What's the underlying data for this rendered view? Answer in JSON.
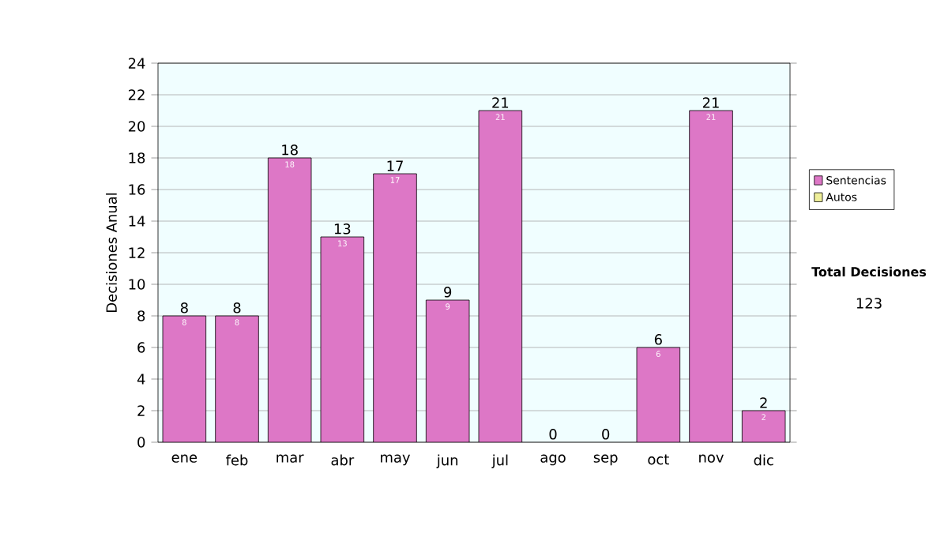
{
  "chart_data": {
    "type": "bar",
    "ylabel": "Decisiones Anual",
    "categories": [
      "ene",
      "feb",
      "mar",
      "abr",
      "may",
      "jun",
      "jul",
      "ago",
      "sep",
      "oct",
      "nov",
      "dic"
    ],
    "series": [
      {
        "name": "Sentencias",
        "color": "#dd77c6",
        "values": [
          8,
          8,
          18,
          13,
          17,
          9,
          21,
          0,
          0,
          6,
          21,
          2
        ],
        "value_labels": [
          "8",
          "8",
          "18",
          "13",
          "17",
          "9",
          "21",
          null,
          null,
          "6",
          "21",
          "2"
        ]
      },
      {
        "name": "Autos",
        "color": "#eeee99",
        "values": [
          0,
          0,
          0,
          0,
          0,
          0,
          0,
          0,
          0,
          0,
          0,
          0
        ]
      }
    ],
    "stacked": true,
    "totals": [
      "8",
      "8",
      "18",
      "13",
      "17",
      "9",
      "21",
      "0",
      "0",
      "6",
      "21",
      "2"
    ],
    "ylim": [
      0,
      24
    ],
    "yticks": [
      0,
      2,
      4,
      6,
      8,
      10,
      12,
      14,
      16,
      18,
      20,
      22,
      24
    ],
    "grid": "y",
    "legend": "right",
    "annotations": [
      "Total Decisiones",
      "123"
    ]
  }
}
